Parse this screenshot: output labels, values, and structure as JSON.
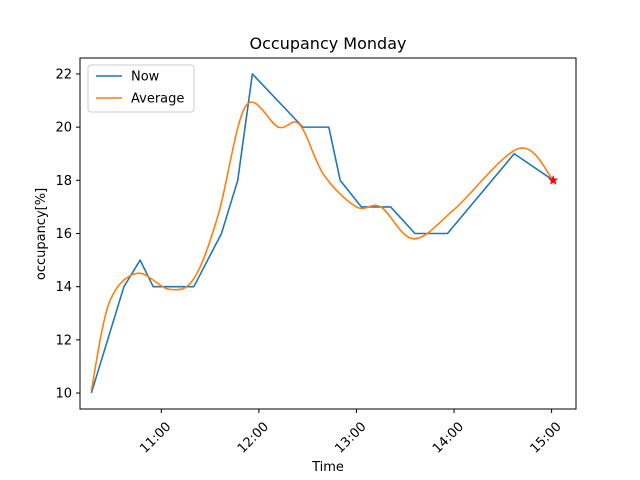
{
  "chart_data": {
    "type": "line",
    "title": "Occupancy Monday",
    "xlabel": "Time",
    "ylabel": "occupancy[%]",
    "x_ticks": [
      {
        "label": "11:00",
        "hour": 11
      },
      {
        "label": "12:00",
        "hour": 12
      },
      {
        "label": "13:00",
        "hour": 13
      },
      {
        "label": "14:00",
        "hour": 14
      },
      {
        "label": "15:00",
        "hour": 15
      }
    ],
    "y_ticks": [
      10,
      12,
      14,
      16,
      18,
      20,
      22
    ],
    "xlim": [
      "10:10",
      "15:15"
    ],
    "ylim": [
      9.4,
      22.6
    ],
    "legend_position": "upper-left",
    "series": [
      {
        "name": "Now",
        "color": "#1f77b4",
        "style": "polyline",
        "points": [
          {
            "x": "10:17",
            "y": 10
          },
          {
            "x": "10:37",
            "y": 14
          },
          {
            "x": "10:47",
            "y": 15
          },
          {
            "x": "10:55",
            "y": 14
          },
          {
            "x": "11:20",
            "y": 14
          },
          {
            "x": "11:37",
            "y": 16
          },
          {
            "x": "11:47",
            "y": 18
          },
          {
            "x": "11:56",
            "y": 22
          },
          {
            "x": "12:27",
            "y": 20
          },
          {
            "x": "12:43",
            "y": 20
          },
          {
            "x": "12:50",
            "y": 18
          },
          {
            "x": "13:03",
            "y": 17
          },
          {
            "x": "13:21",
            "y": 17
          },
          {
            "x": "13:36",
            "y": 16
          },
          {
            "x": "13:56",
            "y": 16
          },
          {
            "x": "14:37",
            "y": 19
          },
          {
            "x": "15:01",
            "y": 18
          }
        ]
      },
      {
        "name": "Average",
        "color": "#ff7f0e",
        "style": "smooth",
        "points": [
          {
            "x": "10:17",
            "y": 10.1
          },
          {
            "x": "10:28",
            "y": 13.4
          },
          {
            "x": "10:45",
            "y": 14.5
          },
          {
            "x": "11:05",
            "y": 13.9
          },
          {
            "x": "11:20",
            "y": 14.3
          },
          {
            "x": "11:35",
            "y": 16.7
          },
          {
            "x": "11:52",
            "y": 20.8
          },
          {
            "x": "12:12",
            "y": 20.0
          },
          {
            "x": "12:25",
            "y": 20.1
          },
          {
            "x": "12:40",
            "y": 18.2
          },
          {
            "x": "13:00",
            "y": 17.0
          },
          {
            "x": "13:15",
            "y": 17.0
          },
          {
            "x": "13:35",
            "y": 15.8
          },
          {
            "x": "14:00",
            "y": 16.9
          },
          {
            "x": "14:40",
            "y": 19.2
          },
          {
            "x": "15:01",
            "y": 18.0
          }
        ]
      }
    ],
    "marker": {
      "x": "15:01",
      "y": 18,
      "color": "#ff0000",
      "shape": "star"
    }
  }
}
